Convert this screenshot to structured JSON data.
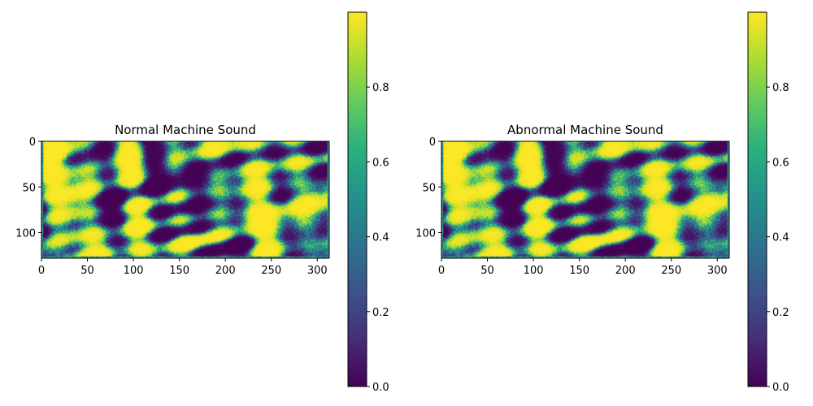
{
  "figure": {
    "left_title": "Normal Machine Sound",
    "right_title": "Abnormal Machine Sound"
  },
  "chart_data": [
    {
      "type": "heatmap",
      "title": "Normal Machine Sound",
      "xlabel": "",
      "ylabel": "",
      "x_ticks": [
        0,
        50,
        100,
        150,
        200,
        250,
        300
      ],
      "y_ticks": [
        0,
        50,
        100
      ],
      "xlim": [
        0,
        313
      ],
      "ylim": [
        128,
        0
      ],
      "colormap": "viridis",
      "colorbar": {
        "min": 0.0,
        "max": 1.0,
        "ticks": [
          "0.0",
          "0.2",
          "0.4",
          "0.6",
          "0.8"
        ]
      },
      "grid": false
    },
    {
      "type": "heatmap",
      "title": "Abnormal Machine Sound",
      "xlabel": "",
      "ylabel": "",
      "x_ticks": [
        0,
        50,
        100,
        150,
        200,
        250,
        300
      ],
      "y_ticks": [
        0,
        50,
        100
      ],
      "xlim": [
        0,
        313
      ],
      "ylim": [
        128,
        0
      ],
      "colormap": "viridis",
      "colorbar": {
        "min": 0.0,
        "max": 1.0,
        "ticks": [
          "0.0",
          "0.2",
          "0.4",
          "0.6",
          "0.8"
        ]
      },
      "grid": false
    }
  ]
}
